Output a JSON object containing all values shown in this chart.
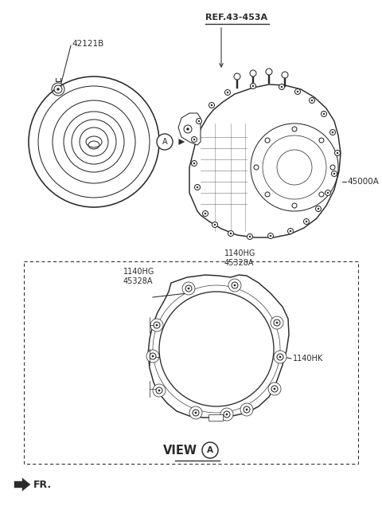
{
  "bg_color": "#ffffff",
  "lc": "#2a2a2a",
  "label_42121B": "42121B",
  "label_ref": "REF.43-453A",
  "label_45000A": "45000A",
  "label_1140HG_45328A_left": "1140HG\n45328A",
  "label_1140HG_45328A_right": "1140HG\n45328A",
  "label_1140HK": "1140HK",
  "label_view": "VIEW",
  "label_FR": "FR.",
  "fs_small": 7.0,
  "fs_label": 7.5,
  "fs_view": 10.5,
  "lw": 0.75
}
